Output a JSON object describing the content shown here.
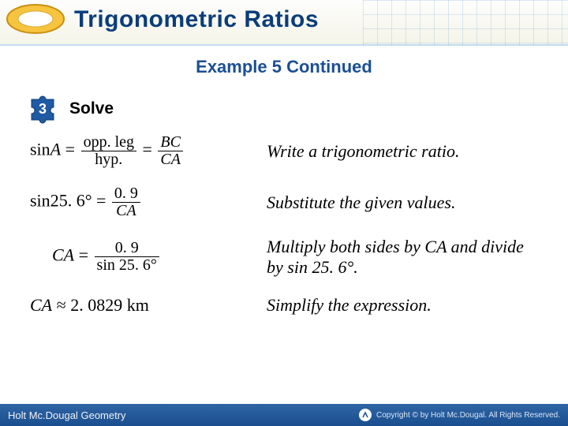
{
  "header": {
    "title": "Trigonometric Ratios",
    "title_color": "#0a3d7a",
    "logo": {
      "outer_fill": "#f6c43e",
      "outer_stroke": "#c98f12",
      "inner_fill": "#ffffff"
    },
    "grid_color": "#71aadd"
  },
  "subtitle": {
    "text": "Example 5 Continued",
    "color": "#1b4f93"
  },
  "solve": {
    "badge_number": "3",
    "badge_fill": "#1f5aa3",
    "badge_text_color": "#ffffff",
    "label": "Solve"
  },
  "steps": [
    {
      "math": {
        "prefix": "sin",
        "var": "A",
        "eq": "=",
        "frac1": {
          "num": "opp. leg",
          "den": "hyp."
        },
        "mid": "=",
        "frac2": {
          "num_it": "BC",
          "den_it": "CA"
        }
      },
      "explain": "Write a trigonometric ratio."
    },
    {
      "math": {
        "prefix": "sin",
        "angle": "25. 6°",
        "eq": "=",
        "frac": {
          "num": "0. 9",
          "den_it": "CA"
        }
      },
      "explain": "Substitute the given values."
    },
    {
      "math": {
        "lhs_it": "CA",
        "eq": "=",
        "frac": {
          "num": "0. 9",
          "den": "sin 25. 6°"
        }
      },
      "explain": "Multiply both sides by CA and divide by sin 25. 6°."
    },
    {
      "math": {
        "result": "CA ≈ 2. 0829 km"
      },
      "explain": "Simplify the expression."
    }
  ],
  "footer": {
    "left": "Holt Mc.Dougal Geometry",
    "copyright": "Copyright © by Holt Mc.Dougal. All Rights Reserved.",
    "bg_top": "#2f65a5",
    "bg_bottom": "#1a4e8f"
  }
}
